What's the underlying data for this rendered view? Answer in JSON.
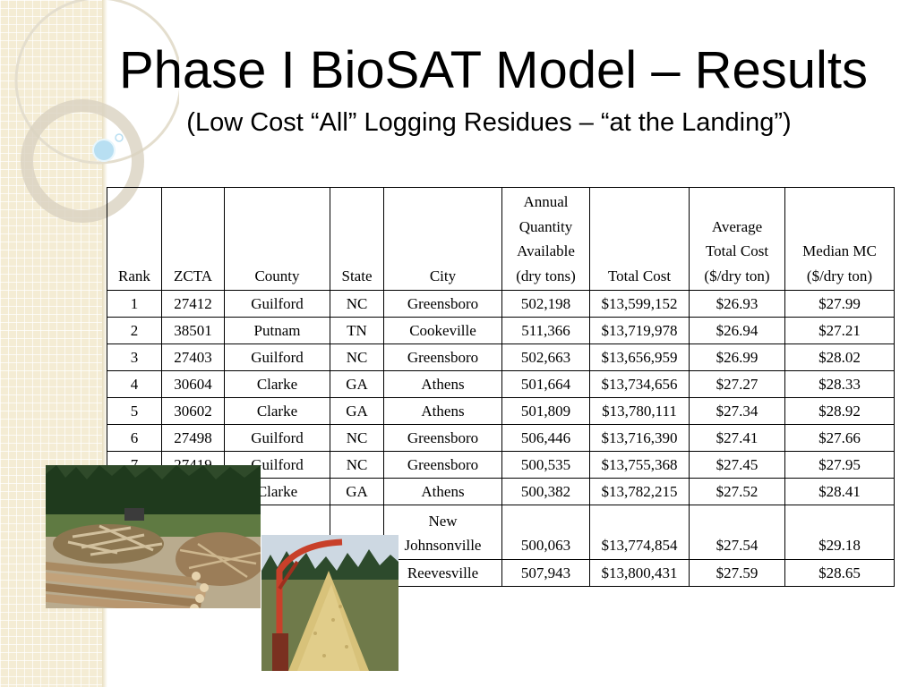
{
  "slide": {
    "title": "Phase I BioSAT Model – Results",
    "subtitle": "(Low Cost “All” Logging Residues – “at the Landing”)"
  },
  "table": {
    "headers": [
      [
        "Rank"
      ],
      [
        "ZCTA"
      ],
      [
        "County"
      ],
      [
        "State"
      ],
      [
        "City"
      ],
      [
        "Annual",
        "Quantity",
        "Available",
        "(dry tons)"
      ],
      [
        "Total Cost"
      ],
      [
        "Average",
        "Total Cost",
        "($/dry ton)"
      ],
      [
        "Median MC",
        "($/dry ton)"
      ]
    ],
    "rows": [
      [
        "1",
        "27412",
        "Guilford",
        "NC",
        "Greensboro",
        "502,198",
        "$13,599,152",
        "$26.93",
        "$27.99"
      ],
      [
        "2",
        "38501",
        "Putnam",
        "TN",
        "Cookeville",
        "511,366",
        "$13,719,978",
        "$26.94",
        "$27.21"
      ],
      [
        "3",
        "27403",
        "Guilford",
        "NC",
        "Greensboro",
        "502,663",
        "$13,656,959",
        "$26.99",
        "$28.02"
      ],
      [
        "4",
        "30604",
        "Clarke",
        "GA",
        "Athens",
        "501,664",
        "$13,734,656",
        "$27.27",
        "$28.33"
      ],
      [
        "5",
        "30602",
        "Clarke",
        "GA",
        "Athens",
        "501,809",
        "$13,780,111",
        "$27.34",
        "$28.92"
      ],
      [
        "6",
        "27498",
        "Guilford",
        "NC",
        "Greensboro",
        "506,446",
        "$13,716,390",
        "$27.41",
        "$27.66"
      ],
      [
        "7",
        "27419",
        "Guilford",
        "NC",
        "Greensboro",
        "500,535",
        "$13,755,368",
        "$27.45",
        "$27.95"
      ],
      [
        "",
        "",
        "Clarke",
        "GA",
        "Athens",
        "500,382",
        "$13,782,215",
        "$27.52",
        "$28.41"
      ],
      [
        "",
        "",
        "",
        "",
        "New\nJohnsonville",
        "500,063",
        "$13,774,854",
        "$27.54",
        "$29.18"
      ],
      [
        "",
        "",
        "",
        "",
        "Reevesville",
        "507,943",
        "$13,800,431",
        "$27.59",
        "$28.65"
      ]
    ]
  },
  "photos": [
    {
      "icon": "logging-residue-pile-photo"
    },
    {
      "icon": "wood-chips-pile-photo"
    }
  ],
  "colors": {
    "strip": "#f4ecd4",
    "decor": "#d9d2c0",
    "bubble": "#b8dff2"
  }
}
